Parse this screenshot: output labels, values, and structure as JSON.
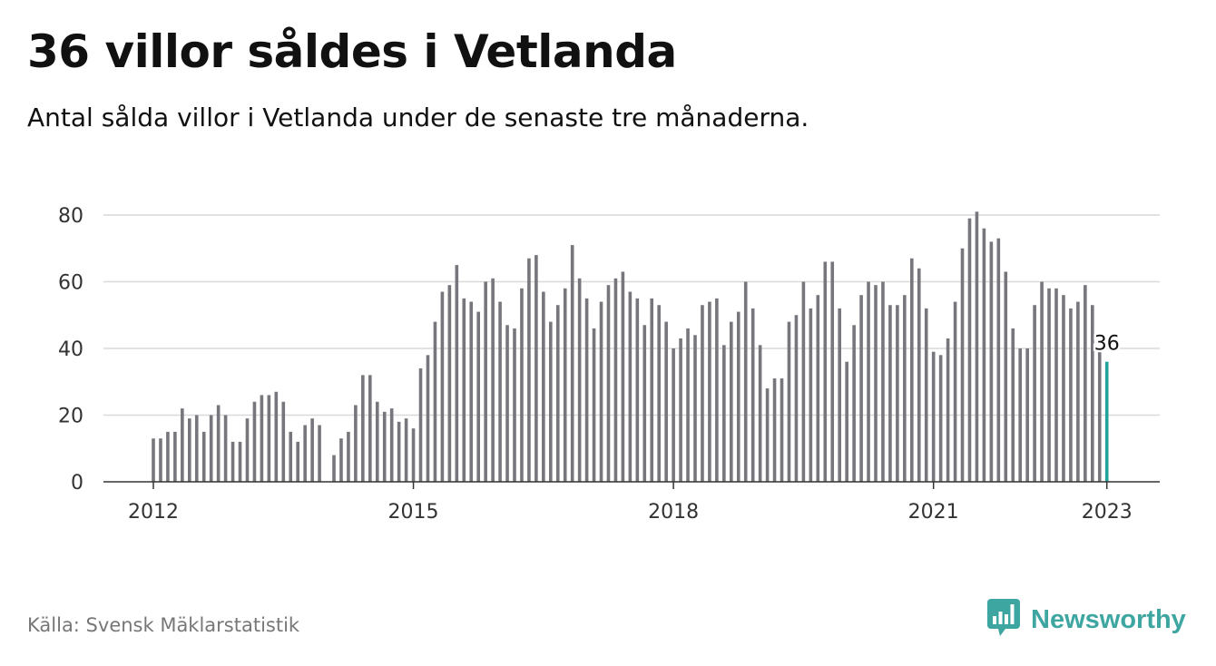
{
  "title": "36 villor såldes i Vetlanda",
  "subtitle": "Antal sålda villor i Vetlanda under de senaste tre månaderna.",
  "source": "Källa: Svensk Mäklarstatistik",
  "brand": {
    "name": "Newsworthy",
    "logo_icon": "bar-chart-speech-bubble-icon"
  },
  "colors": {
    "bar": "#76767c",
    "highlight": "#1fa39a",
    "grid": "#d9d9d9",
    "brand": "#3ea6a1"
  },
  "chart_data": {
    "type": "bar",
    "title": "",
    "xlabel": "",
    "ylabel": "",
    "ylim": [
      0,
      80
    ],
    "yticks": [
      0,
      20,
      40,
      60,
      80
    ],
    "xticks": [
      {
        "label": "2012",
        "index": 0
      },
      {
        "label": "2015",
        "index": 36
      },
      {
        "label": "2018",
        "index": 72
      },
      {
        "label": "2021",
        "index": 108
      },
      {
        "label": "2023",
        "index": 132
      }
    ],
    "start": "2012-01",
    "frequency": "monthly",
    "grid": true,
    "highlight_last": true,
    "last_value_label": "36",
    "values": [
      13,
      13,
      15,
      15,
      22,
      19,
      20,
      15,
      20,
      23,
      20,
      12,
      12,
      19,
      24,
      26,
      26,
      27,
      24,
      15,
      12,
      17,
      19,
      17,
      null,
      8,
      13,
      15,
      23,
      32,
      32,
      24,
      21,
      22,
      18,
      19,
      16,
      34,
      38,
      48,
      57,
      59,
      65,
      55,
      54,
      51,
      60,
      61,
      54,
      47,
      46,
      58,
      67,
      68,
      57,
      48,
      53,
      58,
      71,
      61,
      55,
      46,
      54,
      59,
      61,
      63,
      57,
      55,
      47,
      55,
      53,
      48,
      40,
      43,
      46,
      44,
      53,
      54,
      55,
      41,
      48,
      51,
      60,
      52,
      41,
      28,
      31,
      31,
      48,
      50,
      60,
      52,
      56,
      66,
      66,
      52,
      36,
      47,
      56,
      60,
      59,
      60,
      53,
      53,
      56,
      67,
      64,
      52,
      39,
      38,
      43,
      54,
      70,
      79,
      81,
      76,
      72,
      73,
      63,
      46,
      40,
      40,
      53,
      60,
      58,
      58,
      56,
      52,
      54,
      59,
      53,
      39,
      36
    ]
  }
}
